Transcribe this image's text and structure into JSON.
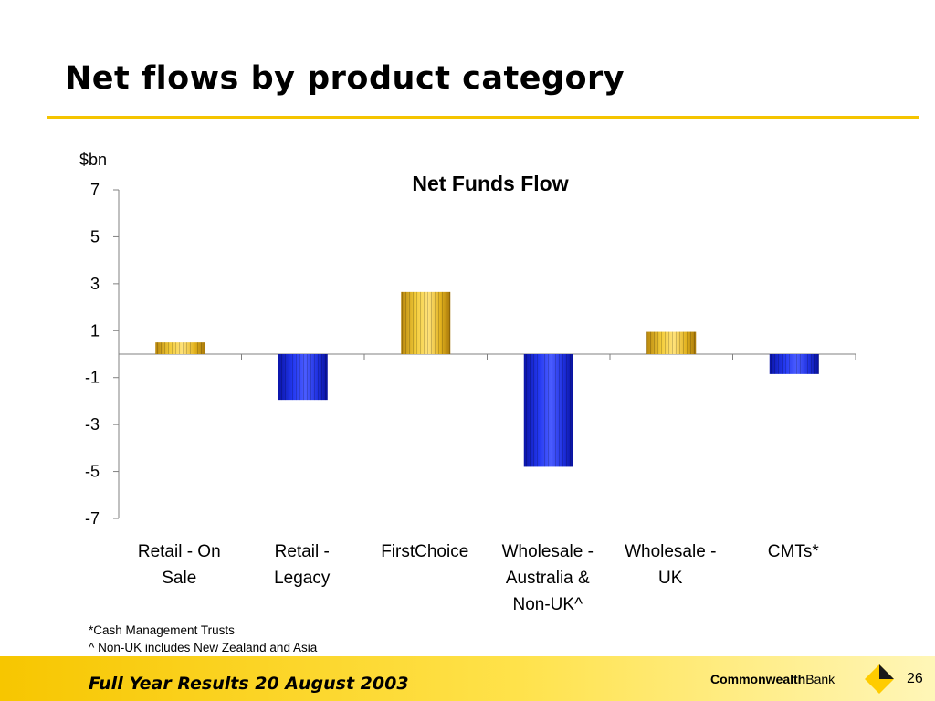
{
  "slide": {
    "title": "Net flows by product category",
    "footnotes": [
      "*Cash Management Trusts",
      "^ Non-UK includes New Zealand and Asia"
    ],
    "footer": "Full Year Results 20 August 2003",
    "brand_bold": "Commonwealth",
    "brand_regular": "Bank",
    "page_number": "26"
  },
  "colors": {
    "accent": "#F5C400",
    "positive_bar": "#E8B820",
    "negative_bar": "#1A2EE6"
  },
  "chart_data": {
    "type": "bar",
    "title": "Net Funds Flow",
    "ylabel": "$bn",
    "xlabel": "",
    "categories": [
      [
        "Retail - On",
        "Sale"
      ],
      [
        "Retail -",
        "Legacy"
      ],
      [
        "FirstChoice"
      ],
      [
        "Wholesale -",
        "Australia &",
        "Non-UK^"
      ],
      [
        "Wholesale -",
        "UK"
      ],
      [
        "CMTs*"
      ]
    ],
    "values": [
      0.5,
      -1.95,
      2.65,
      -4.8,
      0.95,
      -0.85
    ],
    "ylim": [
      -7,
      7
    ],
    "yticks": [
      7,
      5,
      3,
      1,
      -1,
      -3,
      -5,
      -7
    ],
    "grid": false,
    "legend": "none"
  }
}
